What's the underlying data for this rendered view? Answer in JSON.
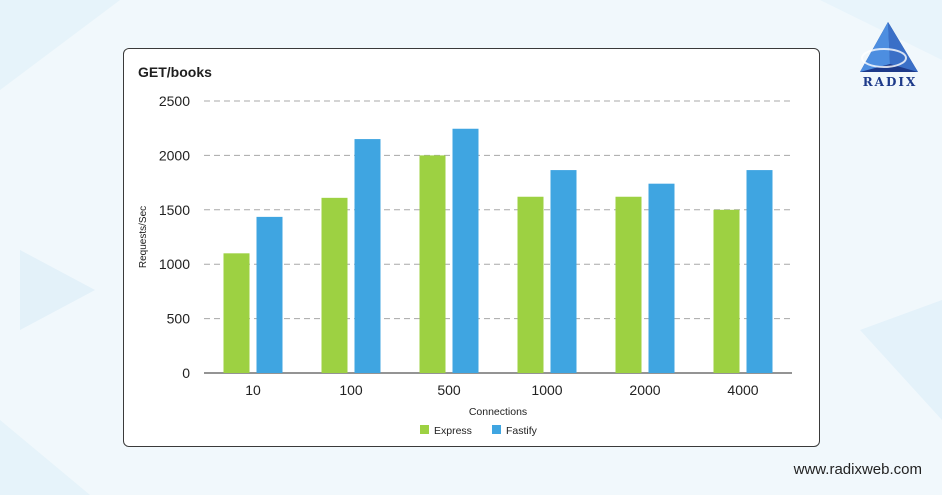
{
  "brand": {
    "logo_text": "RADIX",
    "website": "www.radixweb.com"
  },
  "colors": {
    "background": "#f1f8fc",
    "express": "#9dd142",
    "fastify": "#3fa5e1",
    "logo": "#1d3a8a"
  },
  "chart_data": {
    "type": "bar",
    "title": "GET/books",
    "xlabel": "Connections",
    "ylabel": "Requests/Sec",
    "categories": [
      "10",
      "100",
      "500",
      "1000",
      "2000",
      "4000"
    ],
    "series": [
      {
        "name": "Express",
        "color": "#9dd142",
        "values": [
          1100,
          1610,
          2000,
          1620,
          1620,
          1500
        ]
      },
      {
        "name": "Fastify",
        "color": "#3fa5e1",
        "values": [
          1435,
          2150,
          2245,
          1865,
          1740,
          1865
        ]
      }
    ],
    "ylim": [
      0,
      2500
    ],
    "yticks": [
      "0",
      "500",
      "1000",
      "1500",
      "2000",
      "2500"
    ],
    "grid": true,
    "legend_position": "bottom"
  }
}
